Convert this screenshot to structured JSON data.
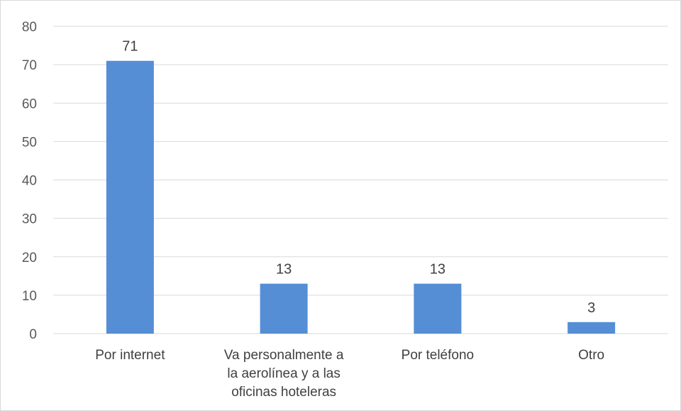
{
  "chart_data": {
    "type": "bar",
    "categories": [
      [
        "Por internet"
      ],
      [
        "Va personalmente a",
        "la aerolínea y a las",
        "oficinas hoteleras"
      ],
      [
        "Por teléfono"
      ],
      [
        "Otro"
      ]
    ],
    "values": [
      71,
      13,
      13,
      3
    ],
    "data_labels": [
      "71",
      "13",
      "13",
      "3"
    ],
    "y_ticks": [
      "0",
      "10",
      "20",
      "30",
      "40",
      "50",
      "60",
      "70",
      "80"
    ],
    "ylim": [
      0,
      80
    ],
    "grid": true,
    "bar_color": "#558ed5",
    "grid_color": "#d9d9d9",
    "title": "",
    "xlabel": "",
    "ylabel": ""
  }
}
